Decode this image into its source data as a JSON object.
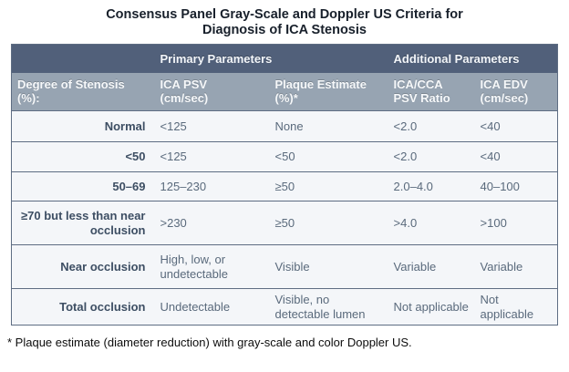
{
  "title": {
    "line1": "Consensus Panel Gray-Scale and Doppler US Criteria for",
    "line2": "Diagnosis of ICA Stenosis"
  },
  "colors": {
    "header_dark": "#51607a",
    "header_light": "#97a4b2",
    "row_background": "#f4f6f9",
    "border": "#5e6d83",
    "row_label_text": "#3d4e63",
    "data_text": "#5a6a7c",
    "title_text": "#18202b"
  },
  "table": {
    "group_headers": {
      "primary": "Primary Parameters",
      "additional": "Additional Parameters"
    },
    "columns": [
      {
        "line1": "Degree of Stenosis",
        "line2": "(%):"
      },
      {
        "line1": "ICA PSV",
        "line2": "(cm/sec)"
      },
      {
        "line1": "Plaque Estimate",
        "line2": "(%)*"
      },
      {
        "line1": "ICA/CCA",
        "line2": "PSV Ratio"
      },
      {
        "line1": "ICA EDV",
        "line2": "(cm/sec)"
      }
    ],
    "rows": [
      {
        "label": "Normal",
        "cells": [
          "<125",
          "None",
          "<2.0",
          "<40"
        ]
      },
      {
        "label": "<50",
        "cells": [
          "<125",
          "<50",
          "<2.0",
          "<40"
        ]
      },
      {
        "label": "50–69",
        "cells": [
          "125–230",
          "≥50",
          "2.0–4.0",
          "40–100"
        ]
      },
      {
        "label": "≥70 but less than near occlusion",
        "cells": [
          ">230",
          "≥50",
          ">4.0",
          ">100"
        ]
      },
      {
        "label": "Near occlusion",
        "cells": [
          "High, low, or undetectable",
          "Visible",
          "Variable",
          "Variable"
        ]
      },
      {
        "label": "Total occlusion",
        "cells": [
          "Undetectable",
          "Visible, no detectable lumen",
          "Not applicable",
          "Not applicable"
        ]
      }
    ]
  },
  "footnote": "* Plaque estimate (diameter reduction) with gray-scale and color Doppler US."
}
